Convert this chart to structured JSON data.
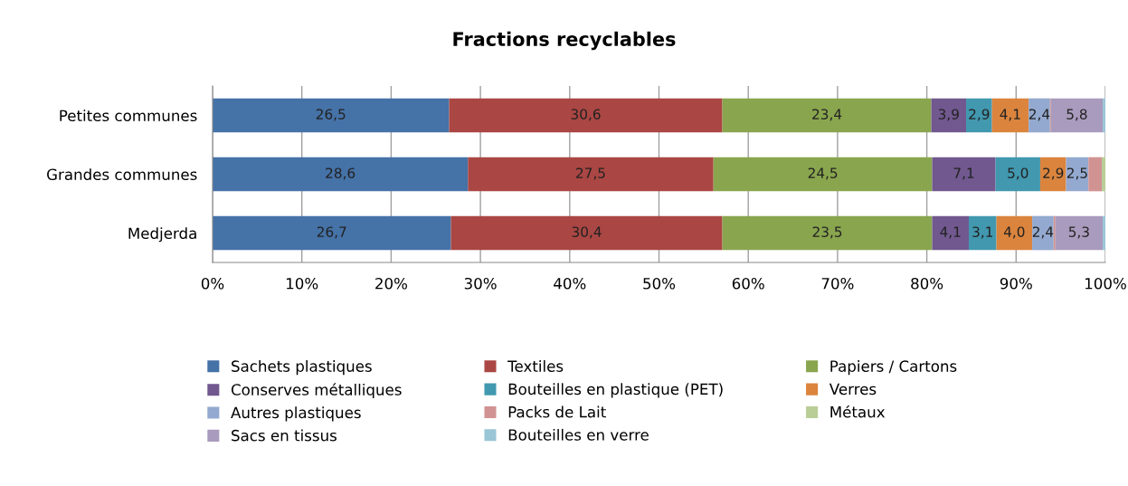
{
  "chart_data": {
    "type": "bar",
    "orientation": "horizontal",
    "stacked": true,
    "title": "Fractions recyclables",
    "categories": [
      "Petites communes",
      "Grandes communes",
      "Medjerda"
    ],
    "xlim": [
      0,
      100
    ],
    "xticks": [
      {
        "value": 0,
        "label": "0%"
      },
      {
        "value": 10,
        "label": "10%"
      },
      {
        "value": 20,
        "label": "20%"
      },
      {
        "value": 30,
        "label": "30%"
      },
      {
        "value": 40,
        "label": "40%"
      },
      {
        "value": 50,
        "label": "50%"
      },
      {
        "value": 60,
        "label": "60%"
      },
      {
        "value": 70,
        "label": "70%"
      },
      {
        "value": 80,
        "label": "80%"
      },
      {
        "value": 90,
        "label": "90%"
      },
      {
        "value": 100,
        "label": "100%"
      }
    ],
    "grid": "x",
    "legend": "bottom",
    "series": [
      {
        "name": "Sachets plastiques",
        "color": "#4572a7",
        "values": [
          26.5,
          28.6,
          26.7
        ],
        "value_labels": [
          "26,5",
          "28,6",
          "26,7"
        ]
      },
      {
        "name": "Textiles",
        "color": "#aa4643",
        "values": [
          30.6,
          27.5,
          30.4
        ],
        "value_labels": [
          "30,6",
          "27,5",
          "30,4"
        ]
      },
      {
        "name": "Papiers / Cartons",
        "color": "#89a54e",
        "values": [
          23.4,
          24.5,
          23.5
        ],
        "value_labels": [
          "23,4",
          "24,5",
          "23,5"
        ]
      },
      {
        "name": "Conserves métalliques",
        "color": "#71588f",
        "values": [
          3.9,
          7.1,
          4.1
        ],
        "value_labels": [
          "3,9",
          "7,1",
          "4,1"
        ]
      },
      {
        "name": "Bouteilles en plastique (PET)",
        "color": "#4198af",
        "values": [
          2.9,
          5.0,
          3.1
        ],
        "value_labels": [
          "2,9",
          "5,0",
          "3,1"
        ]
      },
      {
        "name": "Verres",
        "color": "#db843d",
        "values": [
          4.1,
          2.9,
          4.0
        ],
        "value_labels": [
          "4,1",
          "2,9",
          "4,0"
        ]
      },
      {
        "name": "Autres plastiques",
        "color": "#93a9cf",
        "values": [
          2.4,
          2.5,
          2.4
        ],
        "value_labels": [
          "2,4",
          "2,5",
          "2,4"
        ]
      },
      {
        "name": "Packs de Lait",
        "color": "#d19392",
        "values": [
          0.1,
          1.5,
          0.2
        ],
        "value_labels": [
          null,
          null,
          null
        ]
      },
      {
        "name": "Métaux",
        "color": "#b9cd96",
        "values": [
          0,
          0.4,
          0
        ],
        "value_labels": [
          null,
          null,
          null
        ]
      },
      {
        "name": "Sacs en tissus",
        "color": "#a99bbd",
        "values": [
          5.8,
          0,
          5.3
        ],
        "value_labels": [
          "5,8",
          null,
          "5,3"
        ]
      },
      {
        "name": "Bouteilles en verre",
        "color": "#9ac6d6",
        "values": [
          0.3,
          0,
          0.3
        ],
        "value_labels": [
          null,
          null,
          null
        ]
      }
    ]
  }
}
